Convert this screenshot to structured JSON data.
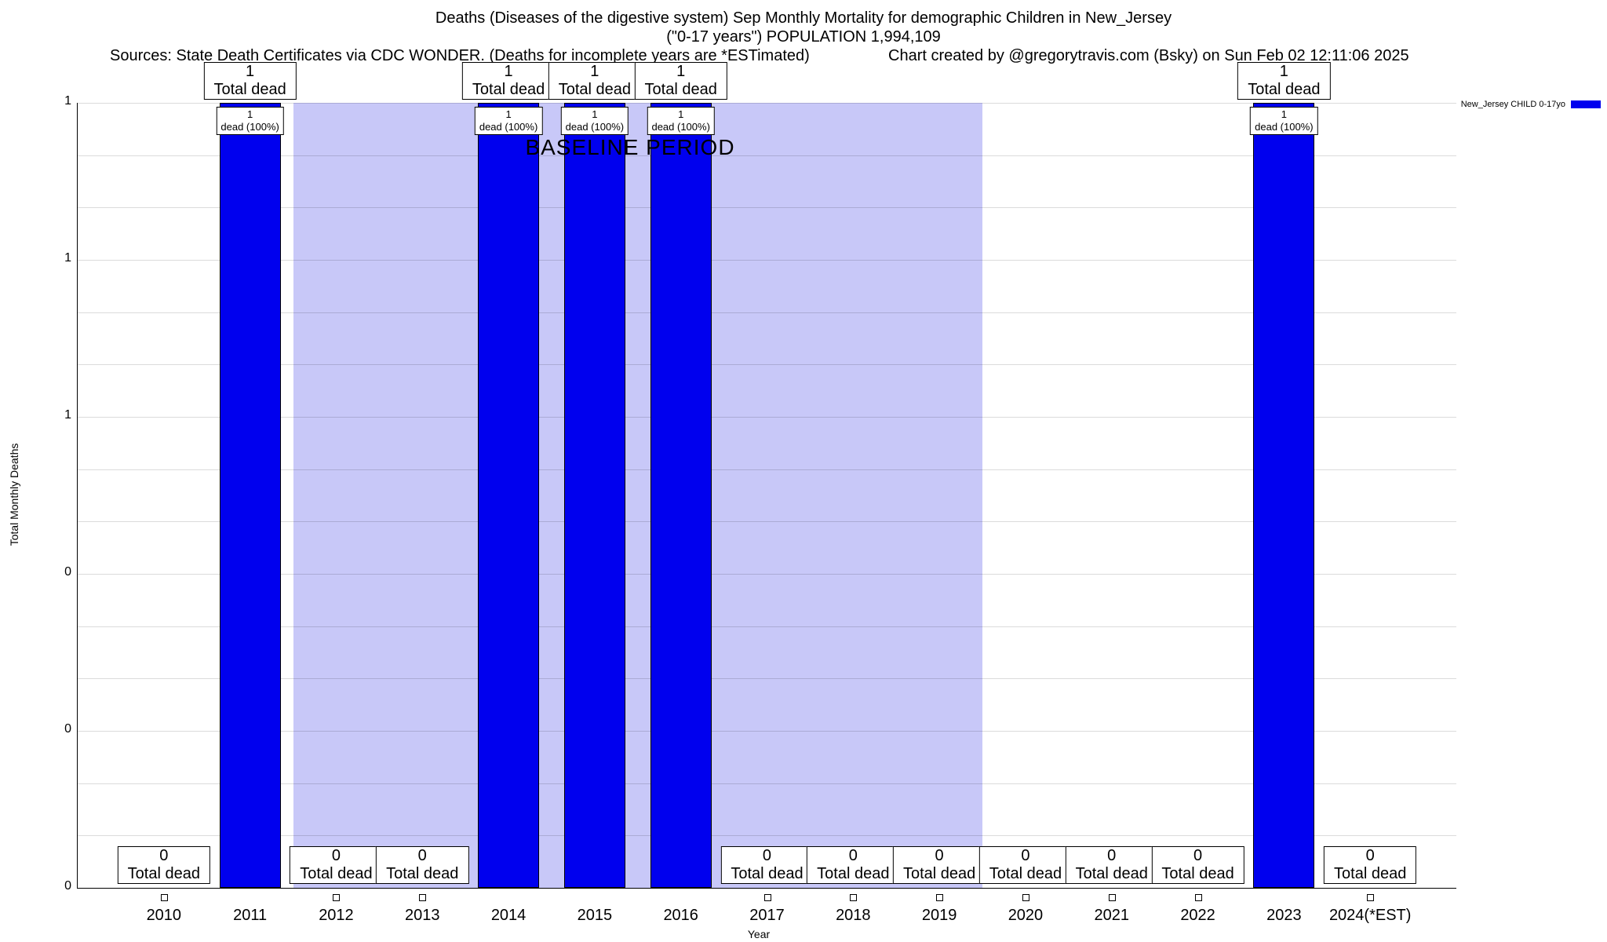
{
  "header": {
    "title": "Deaths (Diseases of the digestive system) Sep Monthly Mortality for demographic Children in New_Jersey",
    "subtitle": "(\"0-17 years\") POPULATION 1,994,109",
    "sources": "Sources: State Death Certificates via CDC WONDER. (Deaths for incomplete years are *ESTimated)",
    "created_by": "Chart created by @gregorytravis.com (Bsky) on Sun Feb 02 12:11:06 2025"
  },
  "legend": {
    "label": "New_Jersey CHILD 0-17yo",
    "color": "#0000ee"
  },
  "chart_data": {
    "type": "bar",
    "title": "Deaths (Diseases of the digestive system) Sep Monthly Mortality for demographic Children in New_Jersey",
    "subtitle": "(\"0-17 years\") POPULATION 1,994,109",
    "xlabel": "Year",
    "ylabel": "Total Monthly Deaths",
    "categories": [
      "2010",
      "2011",
      "2012",
      "2013",
      "2014",
      "2015",
      "2016",
      "2017",
      "2018",
      "2019",
      "2020",
      "2021",
      "2022",
      "2023",
      "2024(*EST)"
    ],
    "values": [
      0,
      1,
      0,
      0,
      1,
      1,
      1,
      0,
      0,
      0,
      0,
      0,
      0,
      1,
      0
    ],
    "bar_color": "#0000ee",
    "ylim": [
      0,
      1
    ],
    "ytick_values": [
      0,
      0.2,
      0.4,
      0.6,
      0.8,
      1
    ],
    "ytick_labels_bottom_to_top": [
      "0",
      "0",
      "0",
      "1",
      "1",
      "1"
    ],
    "minor_gridline_count": 15,
    "grid": "on",
    "legend_position": "top-right",
    "value_box_label": "Total dead",
    "bar_top_box": {
      "value": "1",
      "label": "dead (100%)"
    },
    "baseline": {
      "label": "BASELINE PERIOD",
      "start_category": "2012",
      "end_category": "2019",
      "start_index": 2,
      "end_index": 9,
      "fill": "#c8c8f8"
    },
    "zero_marker": true
  }
}
